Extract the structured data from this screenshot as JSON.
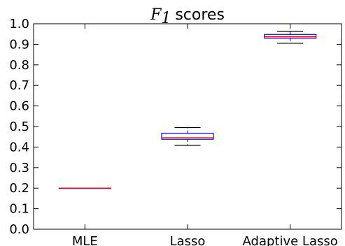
{
  "chart_data": {
    "type": "box",
    "title": "scores",
    "title_math": "F",
    "title_math_sub": "1",
    "xlabel": "",
    "ylabel": "",
    "ylim": [
      0.0,
      1.0
    ],
    "yticks": [
      "0.0",
      "0.1",
      "0.2",
      "0.3",
      "0.4",
      "0.5",
      "0.6",
      "0.7",
      "0.8",
      "0.9",
      "1.0"
    ],
    "grid": false,
    "categories": [
      "MLE",
      "Lasso",
      "Adaptive Lasso"
    ],
    "boxes": [
      {
        "category": "MLE",
        "whisker_low": 0.2,
        "q1": 0.2,
        "median": 0.2,
        "q3": 0.2,
        "whisker_high": 0.2
      },
      {
        "category": "Lasso",
        "whisker_low": 0.408,
        "q1": 0.438,
        "median": 0.445,
        "q3": 0.467,
        "whisker_high": 0.495
      },
      {
        "category": "Adaptive Lasso",
        "whisker_low": 0.905,
        "q1": 0.93,
        "median": 0.937,
        "q3": 0.948,
        "whisker_high": 0.963
      }
    ],
    "colors": {
      "box": "#0000ff",
      "median": "#ff0000",
      "whisker": "#000000"
    }
  }
}
